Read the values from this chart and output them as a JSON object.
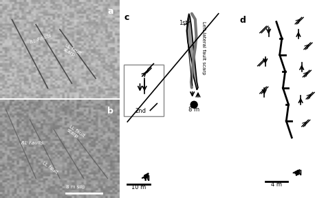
{
  "bg_color": "#ffffff",
  "photo_bg_a": "#888888",
  "photo_bg_b": "#777777",
  "panel_labels": [
    "a",
    "b",
    "c",
    "d"
  ],
  "label_color": "#000000",
  "line_color": "#000000",
  "gray_fill": "#888888",
  "scale_bar_color": "#000000"
}
